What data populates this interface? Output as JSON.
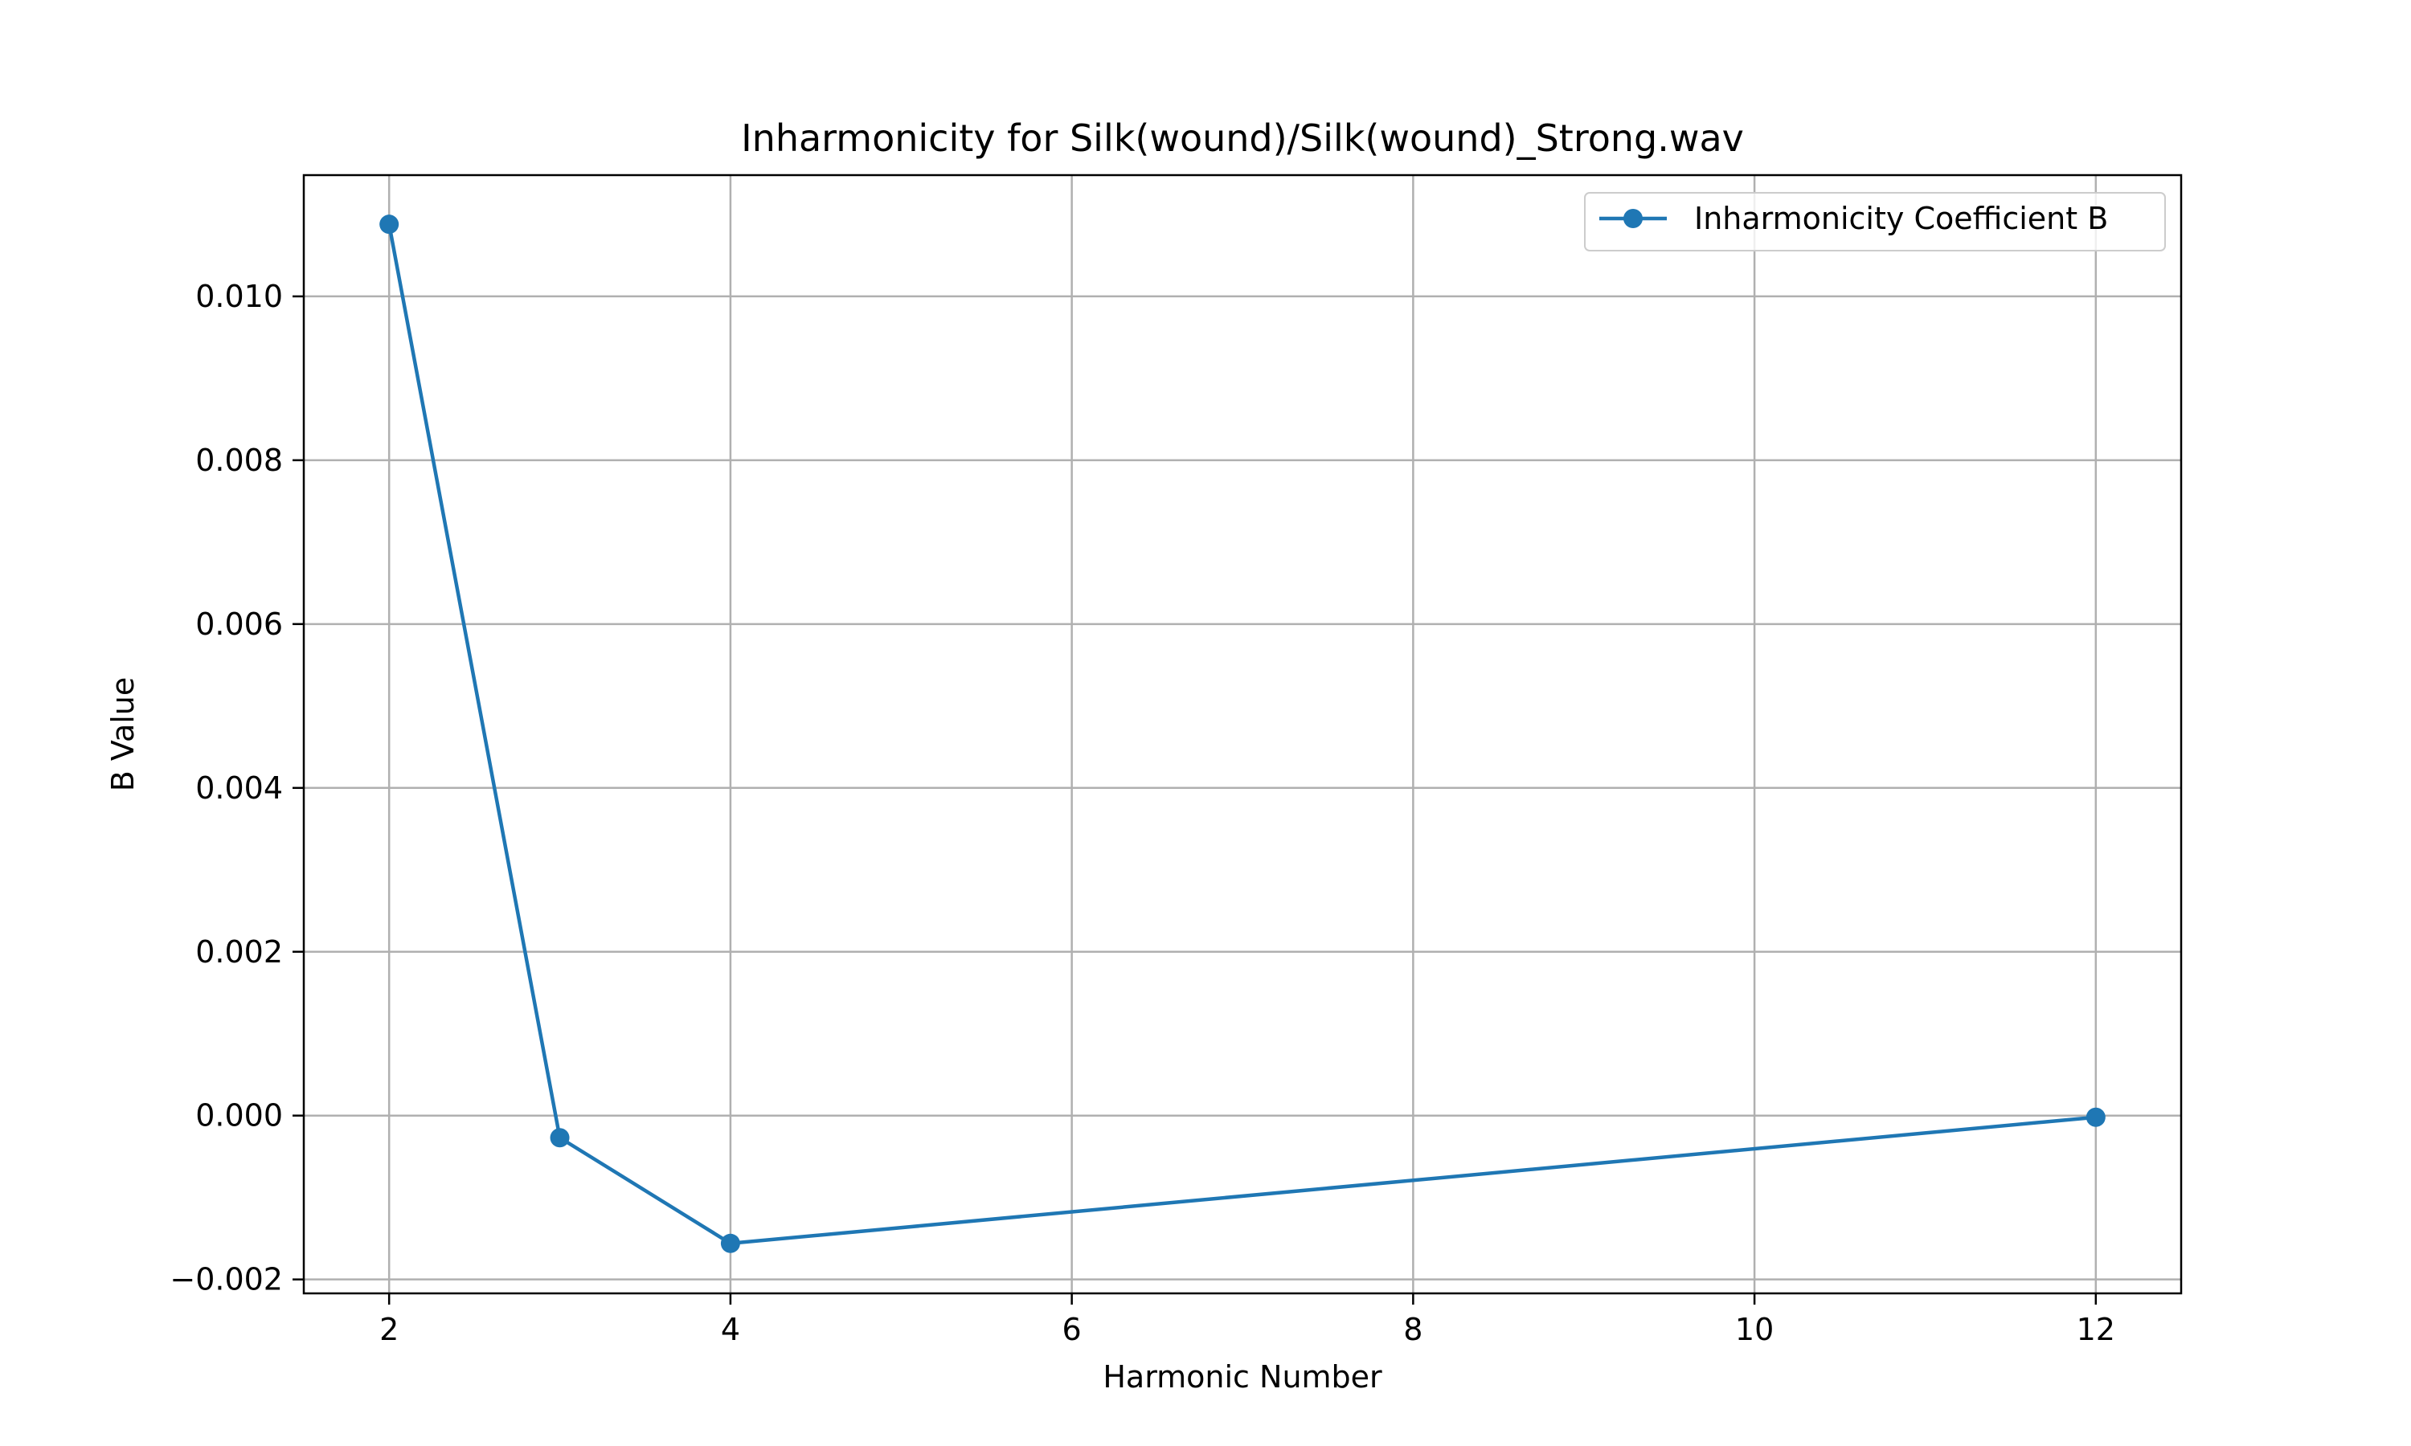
{
  "chart_data": {
    "type": "line",
    "title": "Inharmonicity for Silk(wound)/Silk(wound)_Strong.wav",
    "xlabel": "Harmonic Number",
    "ylabel": "B Value",
    "x": [
      2,
      3,
      4,
      12
    ],
    "series": [
      {
        "name": "Inharmonicity Coefficient B",
        "values": [
          0.01088,
          -0.00027,
          -0.00156,
          -2e-05
        ],
        "color": "#1f77b4",
        "marker": "circle"
      }
    ],
    "xlim": [
      1.5,
      12.5
    ],
    "ylim": [
      -0.00217,
      0.01148
    ],
    "x_ticks": [
      2,
      4,
      6,
      8,
      10,
      12
    ],
    "x_tick_labels": [
      "2",
      "4",
      "6",
      "8",
      "10",
      "12"
    ],
    "y_ticks": [
      -0.002,
      0.0,
      0.002,
      0.004,
      0.006,
      0.008,
      0.01
    ],
    "y_tick_labels": [
      "−0.002",
      "0.000",
      "0.002",
      "0.004",
      "0.006",
      "0.008",
      "0.010"
    ],
    "grid": true,
    "legend_position": "top-right"
  }
}
